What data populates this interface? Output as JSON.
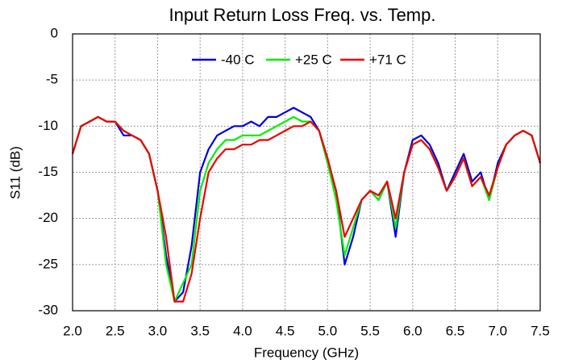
{
  "chart_data": {
    "type": "line",
    "title": "Input Return Loss Freq. vs. Temp.",
    "x_label": "Frequency (GHz)",
    "y_label": "S11 (dB)",
    "x": [
      2.0,
      2.1,
      2.2,
      2.3,
      2.4,
      2.5,
      2.6,
      2.7,
      2.8,
      2.9,
      3.0,
      3.1,
      3.2,
      3.3,
      3.4,
      3.5,
      3.6,
      3.7,
      3.8,
      3.9,
      4.0,
      4.1,
      4.2,
      4.3,
      4.4,
      4.5,
      4.6,
      4.7,
      4.8,
      4.9,
      5.0,
      5.1,
      5.2,
      5.3,
      5.4,
      5.5,
      5.6,
      5.7,
      5.8,
      5.9,
      6.0,
      6.1,
      6.2,
      6.3,
      6.4,
      6.5,
      6.6,
      6.7,
      6.8,
      6.9,
      7.0,
      7.1,
      7.2,
      7.3,
      7.4,
      7.5
    ],
    "series": [
      {
        "name": "-40 C",
        "color": "#0000dd",
        "values": [
          -13,
          -10,
          -9.5,
          -9,
          -9.5,
          -9.5,
          -11,
          -11,
          -11.5,
          -13,
          -17,
          -24,
          -29,
          -28,
          -23,
          -15,
          -12.5,
          -11,
          -10.5,
          -10,
          -10,
          -9.5,
          -10,
          -9,
          -9,
          -8.5,
          -8,
          -8.5,
          -9,
          -10.5,
          -14,
          -17,
          -25,
          -22,
          -18,
          -17,
          -18,
          -16,
          -22,
          -15,
          -11.5,
          -11,
          -12,
          -14,
          -17,
          -15,
          -13,
          -16,
          -15,
          -18,
          -14,
          -12,
          -11,
          -10.5,
          -11,
          -14
        ]
      },
      {
        "name": "+25 C",
        "color": "#00ee00",
        "values": [
          -13,
          -10,
          -9.5,
          -9,
          -9.5,
          -9.5,
          -10.5,
          -11,
          -11.5,
          -13,
          -17,
          -25,
          -29,
          -27,
          -25,
          -17,
          -14,
          -12.5,
          -11.5,
          -11.5,
          -11,
          -11,
          -11,
          -10.5,
          -10,
          -9.5,
          -9,
          -9.5,
          -9.5,
          -10.5,
          -14,
          -18,
          -24,
          -21,
          -18,
          -17,
          -18,
          -16,
          -21,
          -15,
          -12,
          -11.5,
          -12.5,
          -14.5,
          -17,
          -15.5,
          -13.5,
          -16.5,
          -15.5,
          -18,
          -14.5,
          -12,
          -11,
          -10.5,
          -11,
          -14
        ]
      },
      {
        "name": "+71 C",
        "color": "#ee0000",
        "values": [
          -13,
          -10,
          -9.5,
          -9,
          -9.5,
          -9.5,
          -10.5,
          -11,
          -11.5,
          -13,
          -17,
          -22,
          -29,
          -29,
          -26,
          -20,
          -15,
          -13.5,
          -12.5,
          -12.5,
          -12,
          -12,
          -11.5,
          -11.5,
          -11,
          -10.5,
          -10,
          -10,
          -9.5,
          -10.5,
          -13.5,
          -17,
          -22,
          -20,
          -18,
          -17,
          -17.5,
          -16,
          -20,
          -15,
          -12,
          -11.5,
          -12.5,
          -14.5,
          -17,
          -15.5,
          -13.5,
          -16.5,
          -15.5,
          -17.5,
          -14.5,
          -12,
          -11,
          -10.5,
          -11,
          -14
        ]
      }
    ],
    "xlim": [
      2.0,
      7.5
    ],
    "xticks": [
      {
        "value": 2.0,
        "label": "2.0"
      },
      2.5,
      {
        "value": 3.0,
        "label": "3.0"
      },
      3.5,
      {
        "value": 4.0,
        "label": "4.0"
      },
      4.5,
      {
        "value": 5.0,
        "label": "5.0"
      },
      5.5,
      {
        "value": 6.0,
        "label": "6.0"
      },
      6.5,
      {
        "value": 7.0,
        "label": "7.0"
      },
      7.5
    ],
    "ylim": [
      -30,
      0
    ],
    "yticks": [
      0,
      -5,
      -10,
      -15,
      -20,
      -25,
      -30
    ],
    "grid": true
  }
}
